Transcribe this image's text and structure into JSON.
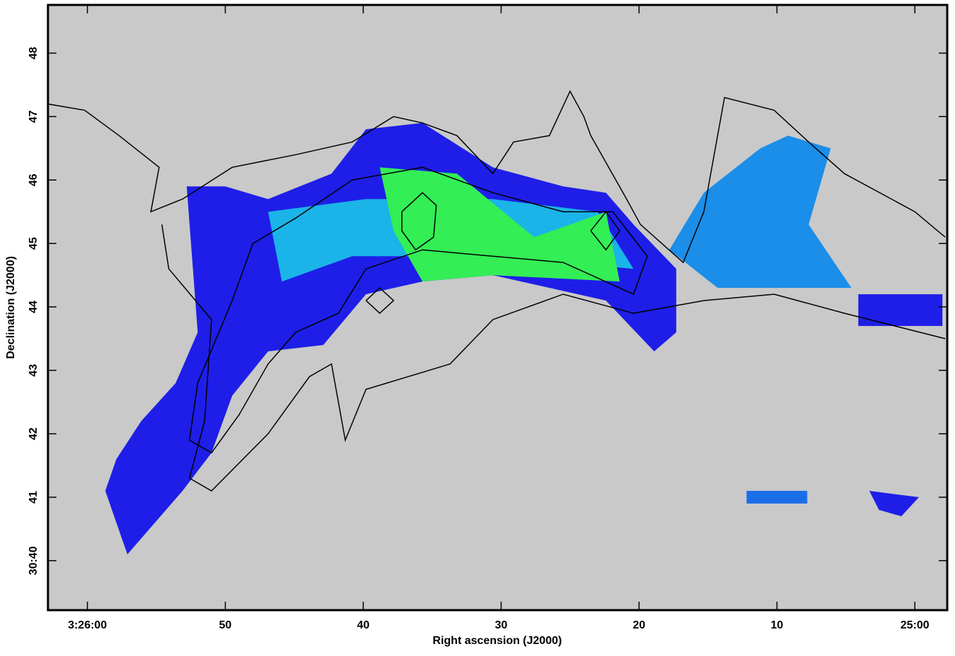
{
  "chart_data": {
    "type": "map",
    "x_label": "Right ascension (J2000)",
    "y_label": "Declination (J2000)",
    "xlim": [
      62.86,
      -2.35
    ],
    "ylim": [
      39.22,
      48.76
    ],
    "xticks": [
      {
        "value": 60,
        "label": "3:26:00"
      },
      50,
      40,
      30,
      20,
      10,
      {
        "value": 0,
        "label": "25:00"
      }
    ],
    "yticks": [
      {
        "value": 40,
        "label": "30:40"
      },
      41,
      42,
      43,
      44,
      45,
      46,
      47,
      48
    ],
    "background": "#c9c9c9",
    "regions": [
      {
        "color": "#1e1ee8",
        "x": [
          57.9,
          56.1,
          53.6,
          52.0,
          52.8,
          50.0,
          46.9,
          42.3,
          39.8,
          35.7,
          30.6,
          25.5,
          22.4,
          20.4,
          17.3,
          17.3,
          18.9,
          22.4,
          30.6,
          35.7,
          39.8,
          42.9,
          46.9,
          49.5,
          51.0,
          53.1,
          57.1,
          58.7
        ],
        "y": [
          41.6,
          42.2,
          42.8,
          43.6,
          45.9,
          45.9,
          45.7,
          46.1,
          46.8,
          46.9,
          46.2,
          45.9,
          45.8,
          45.3,
          44.6,
          43.6,
          43.3,
          44.1,
          44.5,
          44.4,
          44.2,
          43.4,
          43.3,
          42.6,
          41.7,
          41.1,
          40.1,
          41.1
        ]
      },
      {
        "color": "#1ab4e8",
        "x": [
          46.9,
          39.8,
          30.6,
          23.0,
          20.4,
          30.6,
          40.8,
          45.9
        ],
        "y": [
          45.5,
          45.7,
          45.7,
          45.5,
          44.6,
          44.8,
          44.8,
          44.4
        ]
      },
      {
        "color": "#33ee55",
        "x": [
          38.8,
          33.2,
          27.6,
          22.4,
          21.4,
          30.6,
          35.7,
          37.8
        ],
        "y": [
          46.2,
          46.1,
          45.1,
          45.5,
          44.4,
          44.5,
          44.4,
          45.2
        ]
      },
      {
        "color": "#1a8ee8",
        "x": [
          17.8,
          15.3,
          11.2,
          9.2,
          6.1,
          7.7,
          4.6,
          14.3
        ],
        "y": [
          44.9,
          45.8,
          46.5,
          46.7,
          46.5,
          45.3,
          44.3,
          44.3
        ]
      },
      {
        "color": "#1e1ee8",
        "x": [
          3.3,
          -0.3,
          0.98,
          2.6
        ],
        "y": [
          41.1,
          41.0,
          40.7,
          40.8
        ]
      },
      {
        "color": "#1a6ee8",
        "x": [
          12.2,
          7.8,
          7.8,
          12.2
        ],
        "y": [
          41.1,
          41.1,
          40.9,
          40.9
        ]
      },
      {
        "color": "#1e1ee8",
        "x": [
          4.1,
          -2.0,
          -2.0,
          4.1
        ],
        "y": [
          44.2,
          44.2,
          43.7,
          43.7
        ]
      }
    ],
    "contours": [
      {
        "color": "#000000",
        "x": [
          54.6,
          54.1,
          51.0,
          51.5,
          52.6,
          51.0,
          46.9,
          43.9,
          42.3,
          41.3,
          39.8,
          33.7,
          30.6,
          25.5,
          20.4,
          15.3,
          10.2,
          5.1,
          -2.2
        ],
        "y": [
          45.3,
          44.6,
          43.8,
          42.2,
          41.3,
          41.1,
          42.0,
          42.9,
          43.1,
          41.9,
          42.7,
          43.1,
          43.8,
          44.2,
          43.9,
          44.1,
          44.2,
          43.9,
          43.5
        ]
      },
      {
        "color": "#000000",
        "x": [
          62.9,
          60.2,
          57.7,
          54.8,
          55.4,
          53.1,
          49.5,
          44.9,
          40.8,
          37.8,
          35.7,
          33.2,
          30.6,
          29.1,
          26.5,
          25.0,
          24.0,
          23.5,
          20.9,
          19.9,
          16.8,
          15.3,
          13.8,
          10.2,
          7.7,
          5.1,
          0.0,
          -2.2
        ],
        "y": [
          47.2,
          47.1,
          46.7,
          46.2,
          45.5,
          45.7,
          46.2,
          46.4,
          46.6,
          47.0,
          46.9,
          46.7,
          46.1,
          46.6,
          46.7,
          47.4,
          47.0,
          46.7,
          45.7,
          45.3,
          44.7,
          45.5,
          47.3,
          47.1,
          46.6,
          46.1,
          45.5,
          45.1
        ]
      },
      {
        "color": "#000000",
        "x": [
          52.0,
          49.5,
          48.0,
          44.9,
          40.8,
          35.7,
          30.6,
          25.5,
          21.9,
          19.4,
          20.4,
          25.5,
          30.6,
          35.7,
          39.8,
          41.8,
          44.9,
          46.9,
          49.0,
          51.0,
          52.6,
          52.0
        ],
        "y": [
          42.8,
          44.1,
          45.0,
          45.4,
          46.0,
          46.2,
          45.8,
          45.5,
          45.5,
          44.8,
          44.2,
          44.7,
          44.8,
          44.9,
          44.6,
          43.9,
          43.6,
          43.1,
          42.3,
          41.7,
          41.9,
          42.8
        ]
      },
      {
        "color": "#000000",
        "x": [
          37.2,
          35.7,
          34.7,
          34.9,
          36.2,
          37.2,
          37.2
        ],
        "y": [
          45.5,
          45.8,
          45.6,
          45.1,
          44.9,
          45.2,
          45.5
        ]
      },
      {
        "color": "#000000",
        "x": [
          39.8,
          38.8,
          37.8,
          38.8,
          39.8
        ],
        "y": [
          44.1,
          44.3,
          44.1,
          43.9,
          44.1
        ]
      },
      {
        "color": "#000000",
        "x": [
          23.5,
          22.4,
          21.4,
          22.4,
          23.5
        ],
        "y": [
          45.2,
          45.5,
          45.2,
          44.9,
          45.2
        ]
      }
    ]
  }
}
